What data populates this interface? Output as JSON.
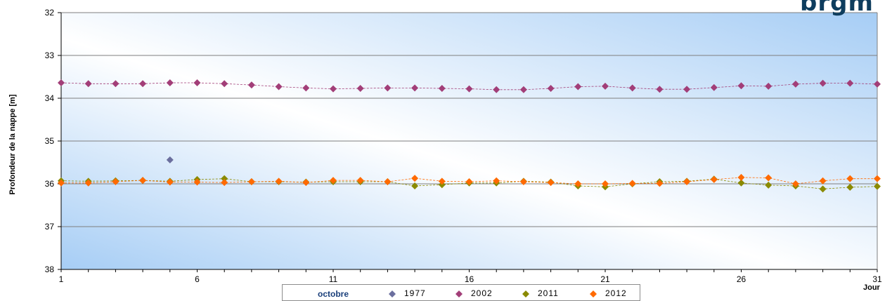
{
  "brand": "brgm",
  "chart_data": {
    "type": "scatter",
    "title": "",
    "xlabel": "Jour",
    "ylabel": "Profondeur de la nappe [m]",
    "xlim": [
      1,
      31
    ],
    "ylim": [
      32,
      38
    ],
    "y_inverted": true,
    "x_ticks": [
      1,
      6,
      11,
      16,
      21,
      26,
      31
    ],
    "y_ticks": [
      32,
      33,
      34,
      35,
      36,
      37,
      38
    ],
    "grid": "horizontal",
    "legend_title": "octobre",
    "legend_position": "bottom",
    "series": [
      {
        "name": "1977",
        "color": "#6b6f9e",
        "line": false,
        "x": [
          5
        ],
        "y": [
          35.44
        ]
      },
      {
        "name": "2002",
        "color": "#a23e78",
        "line": true,
        "x": [
          1,
          2,
          3,
          4,
          5,
          6,
          7,
          8,
          9,
          10,
          11,
          12,
          13,
          14,
          15,
          16,
          17,
          18,
          19,
          20,
          21,
          22,
          23,
          24,
          25,
          26,
          27,
          28,
          29,
          30,
          31
        ],
        "y": [
          33.64,
          33.66,
          33.66,
          33.66,
          33.64,
          33.64,
          33.66,
          33.69,
          33.73,
          33.76,
          33.78,
          33.77,
          33.76,
          33.76,
          33.77,
          33.78,
          33.8,
          33.8,
          33.77,
          33.73,
          33.72,
          33.76,
          33.79,
          33.79,
          33.75,
          33.71,
          33.72,
          33.67,
          33.65,
          33.65,
          33.67
        ]
      },
      {
        "name": "2011",
        "color": "#8a8a00",
        "line": true,
        "x": [
          1,
          2,
          3,
          4,
          5,
          6,
          7,
          8,
          9,
          10,
          11,
          12,
          13,
          14,
          15,
          16,
          17,
          18,
          19,
          20,
          21,
          22,
          23,
          24,
          25,
          26,
          27,
          28,
          29,
          30,
          31
        ],
        "y": [
          35.93,
          35.94,
          35.93,
          35.92,
          35.94,
          35.9,
          35.88,
          35.95,
          35.95,
          35.96,
          35.95,
          35.95,
          35.95,
          36.05,
          36.02,
          35.98,
          35.98,
          35.94,
          35.96,
          36.05,
          36.07,
          36.0,
          35.95,
          35.94,
          35.89,
          35.98,
          36.03,
          36.05,
          36.12,
          36.08,
          36.06
        ]
      },
      {
        "name": "2012",
        "color": "#ff6a00",
        "line": true,
        "x": [
          1,
          2,
          3,
          4,
          5,
          6,
          7,
          8,
          9,
          10,
          11,
          12,
          13,
          14,
          15,
          16,
          17,
          18,
          19,
          20,
          21,
          22,
          23,
          24,
          25,
          26,
          27,
          28,
          29,
          30,
          31
        ],
        "y": [
          35.98,
          35.98,
          35.95,
          35.92,
          35.96,
          35.96,
          35.97,
          35.95,
          35.94,
          35.97,
          35.92,
          35.92,
          35.95,
          35.87,
          35.94,
          35.95,
          35.93,
          35.95,
          35.97,
          36.0,
          36.0,
          35.99,
          35.99,
          35.95,
          35.9,
          35.85,
          35.86,
          36.0,
          35.93,
          35.88,
          35.88
        ]
      }
    ]
  }
}
